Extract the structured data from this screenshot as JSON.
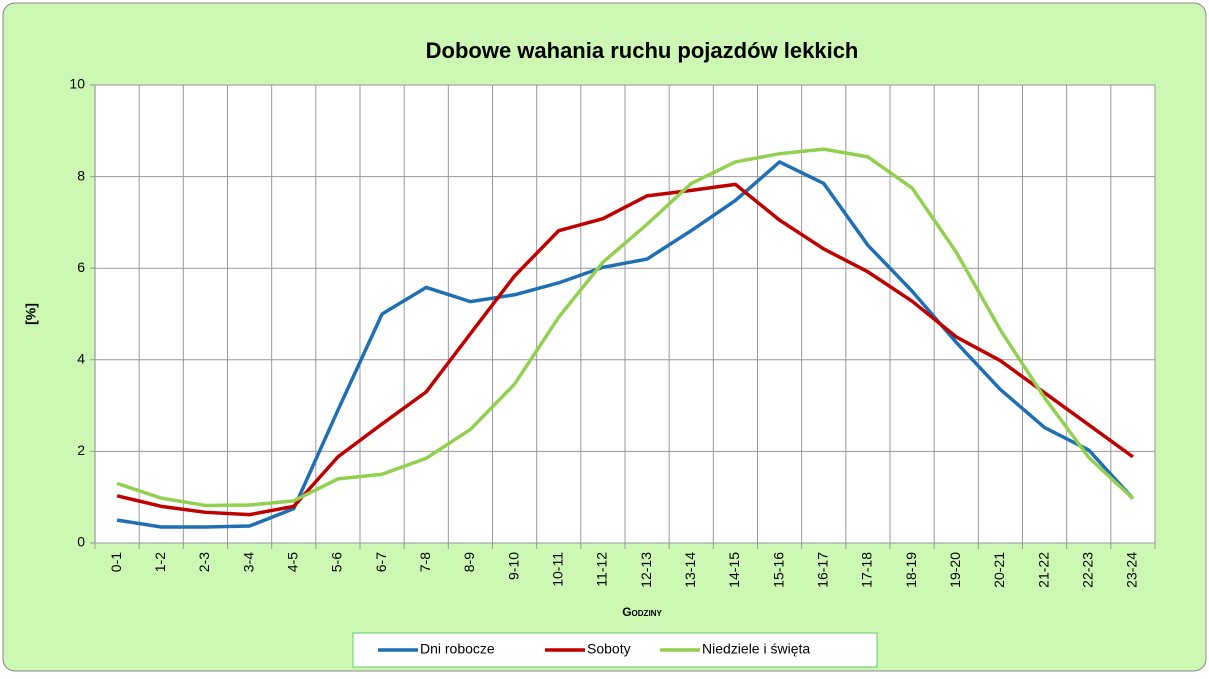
{
  "chart_data": {
    "type": "line",
    "title": "Dobowe wahania ruchu pojazdów lekkich",
    "x_label": "Godziny",
    "y_label": "[%]",
    "categories": [
      "0-1",
      "1-2",
      "2-3",
      "3-4",
      "4-5",
      "5-6",
      "6-7",
      "7-8",
      "8-9",
      "9-10",
      "10-11",
      "11-12",
      "12-13",
      "13-14",
      "14-15",
      "15-16",
      "16-17",
      "17-18",
      "18-19",
      "19-20",
      "20-21",
      "21-22",
      "22-23",
      "23-24"
    ],
    "series": [
      {
        "name": "Dni robocze",
        "color": "#1f6fb5",
        "values": [
          0.5,
          0.35,
          0.35,
          0.37,
          0.75,
          2.9,
          5.0,
          5.58,
          5.27,
          5.42,
          5.68,
          6.02,
          6.2,
          6.82,
          7.48,
          8.32,
          7.85,
          6.5,
          5.5,
          4.38,
          3.35,
          2.52,
          2.03,
          0.97
        ]
      },
      {
        "name": "Soboty",
        "color": "#c00000",
        "values": [
          1.03,
          0.8,
          0.67,
          0.62,
          0.8,
          1.88,
          2.6,
          3.3,
          4.57,
          5.83,
          6.82,
          7.08,
          7.58,
          7.7,
          7.83,
          7.05,
          6.42,
          5.92,
          5.28,
          4.5,
          3.98,
          3.28,
          2.58,
          1.88
        ]
      },
      {
        "name": "Niedziele i święta",
        "color": "#92d050",
        "values": [
          1.3,
          0.98,
          0.82,
          0.83,
          0.92,
          1.4,
          1.5,
          1.85,
          2.48,
          3.47,
          4.93,
          6.13,
          6.96,
          7.85,
          8.32,
          8.5,
          8.6,
          8.43,
          7.75,
          6.35,
          4.65,
          3.17,
          1.87,
          0.97
        ]
      }
    ],
    "ylim": [
      0,
      10
    ],
    "yticks": [
      0,
      2,
      4,
      6,
      8,
      10
    ],
    "grid": true,
    "legend": "bottom"
  }
}
